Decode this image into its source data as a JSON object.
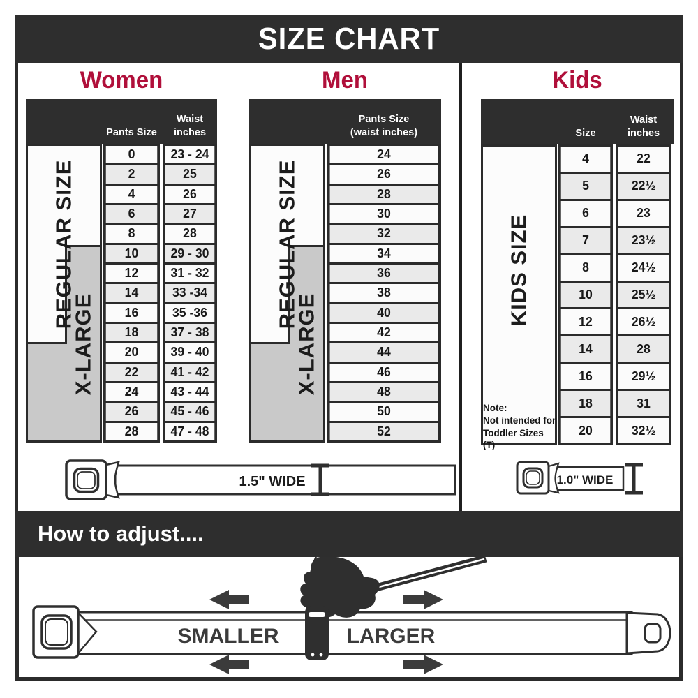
{
  "title": "SIZE CHART",
  "colors": {
    "charcoal": "#2e2e2e",
    "crimson": "#b00f3a",
    "row_gray": "#eaeaea",
    "row_white": "#fbfbfb",
    "label_gray": "#c9c9c9",
    "arrow_gray": "#3b3b3b"
  },
  "icons": {
    "buckle": "seatbelt-buckle-icon",
    "width_marker": "i-beam-width-marker-icon",
    "hand": "pulling-hand-icon",
    "arrow_left": "arrow-left-icon",
    "arrow_right": "arrow-right-icon",
    "belt_tip": "belt-tip-icon"
  },
  "sections": {
    "women": {
      "heading": "Women",
      "col1_header": "Pants Size",
      "col2_header_line1": "Waist",
      "col2_header_line2": "inches",
      "regular_label": "REGULAR SIZE",
      "xlarge_label": "X-LARGE",
      "rows": [
        {
          "size": "0",
          "waist": "23 - 24"
        },
        {
          "size": "2",
          "waist": "25"
        },
        {
          "size": "4",
          "waist": "26"
        },
        {
          "size": "6",
          "waist": "27"
        },
        {
          "size": "8",
          "waist": "28"
        },
        {
          "size": "10",
          "waist": "29 - 30"
        },
        {
          "size": "12",
          "waist": "31 - 32"
        },
        {
          "size": "14",
          "waist": "33 -34"
        },
        {
          "size": "16",
          "waist": "35 -36"
        },
        {
          "size": "18",
          "waist": "37 - 38"
        },
        {
          "size": "20",
          "waist": "39 - 40"
        },
        {
          "size": "22",
          "waist": "41 - 42"
        },
        {
          "size": "24",
          "waist": "43 - 44"
        },
        {
          "size": "26",
          "waist": "45 - 46"
        },
        {
          "size": "28",
          "waist": "47 - 48"
        }
      ]
    },
    "men": {
      "heading": "Men",
      "col_header_line1": "Pants Size",
      "col_header_line2": "(waist inches)",
      "regular_label": "REGULAR SIZE",
      "xlarge_label": "X-LARGE",
      "rows": [
        "24",
        "26",
        "28",
        "30",
        "32",
        "34",
        "36",
        "38",
        "40",
        "42",
        "44",
        "46",
        "48",
        "50",
        "52"
      ]
    },
    "kids": {
      "heading": "Kids",
      "col1_header": "Size",
      "col2_header_line1": "Waist",
      "col2_header_line2": "inches",
      "size_label": "KIDS SIZE",
      "note_line1": "Note:",
      "note_line2": "Not intended for",
      "note_line3": "Toddler Sizes (T)",
      "rows": [
        {
          "size": "4",
          "waist": "22"
        },
        {
          "size": "5",
          "waist": "22½"
        },
        {
          "size": "6",
          "waist": "23"
        },
        {
          "size": "7",
          "waist": "23½"
        },
        {
          "size": "8",
          "waist": "24½"
        },
        {
          "size": "10",
          "waist": "25½"
        },
        {
          "size": "12",
          "waist": "26½"
        },
        {
          "size": "14",
          "waist": "28"
        },
        {
          "size": "16",
          "waist": "29½"
        },
        {
          "size": "18",
          "waist": "31"
        },
        {
          "size": "20",
          "waist": "32½"
        }
      ]
    }
  },
  "belts": {
    "adult_width_label": "1.5\" WIDE",
    "kids_width_label": "1.0\" WIDE"
  },
  "how_to_adjust": {
    "heading": "How to adjust....",
    "smaller_label": "SMALLER",
    "larger_label": "LARGER"
  }
}
